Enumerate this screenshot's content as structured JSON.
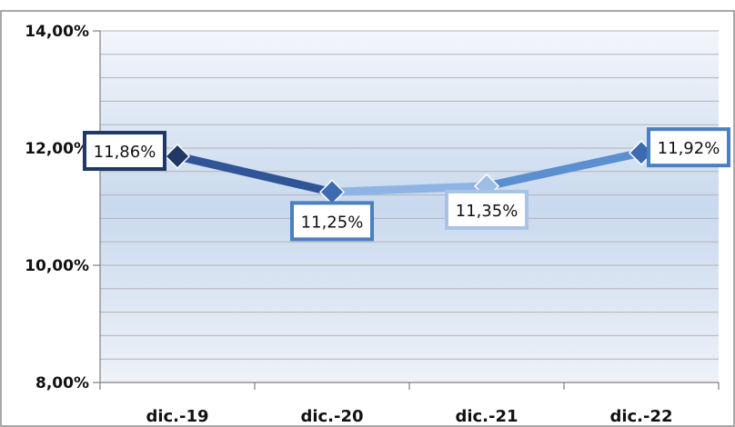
{
  "chart_data": {
    "type": "line",
    "title": "",
    "xlabel": "",
    "ylabel": "",
    "categories": [
      "dic.-19",
      "dic.-20",
      "dic.-21",
      "dic.-22"
    ],
    "ylim": [
      8,
      14
    ],
    "yticks": [
      8,
      10,
      12,
      14
    ],
    "ytick_labels": [
      "8,00%",
      "10,00%",
      "12,00%",
      "14,00%"
    ],
    "series": [
      {
        "values": [
          11.86,
          11.25,
          11.35,
          11.92
        ],
        "data_labels": [
          "11,86%",
          "11,25%",
          "11,35%",
          "11,92%"
        ]
      }
    ],
    "grid": true,
    "legend": "none",
    "colors": {
      "label_borders": [
        "#1f3864",
        "#4a7fc1",
        "#a9c3e6",
        "#4a7fc1"
      ],
      "segments": [
        "#2f5597",
        "#8eb4e3",
        "#5b8fd0"
      ],
      "markers": [
        "#1f3864",
        "#3d6bb0",
        "#9dbde6",
        "#3d6bb0"
      ],
      "plot_gradient_top": "#f3f6fb",
      "plot_gradient_mid": "#c9d9ee",
      "plot_gradient_bottom": "#eef2f8",
      "gridline": "#b3b3b3"
    }
  }
}
